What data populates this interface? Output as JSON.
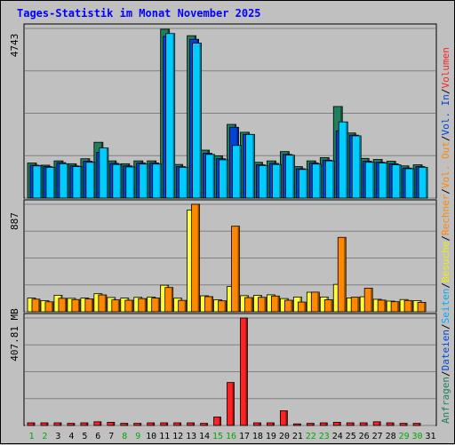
{
  "chart_data": {
    "type": "bar",
    "title": "Tages-Statistik im Monat November 2025",
    "days": [
      "1",
      "2",
      "3",
      "4",
      "5",
      "6",
      "7",
      "8",
      "9",
      "10",
      "11",
      "12",
      "13",
      "14",
      "15",
      "16",
      "17",
      "18",
      "19",
      "20",
      "21",
      "22",
      "23",
      "24",
      "25",
      "26",
      "27",
      "28",
      "29",
      "30",
      "31"
    ],
    "weekend_days": [
      "1",
      "2",
      "8",
      "9",
      "15",
      "16",
      "22",
      "23",
      "29",
      "30"
    ],
    "panels": [
      {
        "id": "hits",
        "ymax_label": "4743",
        "ylim": [
          0,
          4743
        ],
        "series": [
          {
            "name": "Anfragen",
            "color": "#1f7f5f",
            "values": [
              980,
              920,
              1040,
              960,
              1100,
              1560,
              1040,
              960,
              1040,
              1040,
              4720,
              940,
              4540,
              1340,
              1180,
              2060,
              1840,
              1000,
              1040,
              1300,
              880,
              1040,
              1130,
              2560,
              1820,
              1110,
              1080,
              1030,
              900,
              930,
              0
            ]
          },
          {
            "name": "Dateien",
            "color": "#0044dd",
            "values": [
              920,
              880,
              990,
              900,
              1030,
              1280,
              970,
              900,
              980,
              980,
              4520,
              880,
              4440,
              1250,
              1100,
              1980,
              1780,
              930,
              970,
              1220,
              820,
              980,
              1060,
              1880,
              1760,
              1030,
              1000,
              960,
              840,
              880,
              0
            ]
          },
          {
            "name": "Seiten",
            "color": "#00ccff",
            "values": [
              900,
              860,
              960,
              880,
              1000,
              1400,
              940,
              870,
              950,
              950,
              4600,
              860,
              4330,
              1220,
              1070,
              1470,
              1780,
              910,
              940,
              1200,
              800,
              950,
              1040,
              2130,
              1740,
              1000,
              980,
              930,
              820,
              860,
              0
            ]
          }
        ]
      },
      {
        "id": "visits",
        "ymax_label": "887",
        "ylim": [
          0,
          887
        ],
        "series": [
          {
            "name": "Besuche",
            "color": "#ffff33",
            "values": [
              113,
              91,
              136,
              111,
              113,
              149,
              118,
              113,
              119,
              122,
              219,
              112,
              840,
              132,
              99,
              209,
              133,
              135,
              140,
              109,
              122,
              161,
              122,
              226,
              114,
              124,
              103,
              88,
              101,
              91,
              0
            ]
          },
          {
            "name": "Rechner",
            "color": "#ff8800",
            "values": [
              104,
              82,
              111,
              101,
              106,
              139,
              98,
              95,
              109,
              113,
              200,
              94,
              887,
              125,
              90,
              706,
              117,
              119,
              130,
              95,
              80,
              162,
              99,
              614,
              120,
              194,
              96,
              83,
              93,
              78,
              0
            ]
          }
        ]
      },
      {
        "id": "volume",
        "ymax_label": "407.81 MB",
        "ylim": [
          0,
          407.81
        ],
        "series": [
          {
            "name": "Volumen",
            "color": "#ff2222",
            "values": [
              10,
              10,
              10,
              8,
              10,
              14,
              12,
              8,
              8,
              10,
              10,
              10,
              10,
              8,
              32,
              163,
              407.81,
              10,
              10,
              56,
              6,
              8,
              10,
              12,
              10,
              10,
              14,
              10,
              8,
              8,
              0
            ]
          }
        ]
      }
    ],
    "legend_right": [
      {
        "label": "Anfragen",
        "color": "#1f7f5f"
      },
      {
        "label": "Dateien",
        "color": "#0044dd"
      },
      {
        "label": "Seiten",
        "color": "#00aaff"
      },
      {
        "label": "Besuche",
        "color": "#eeee00"
      },
      {
        "label": "Rechner",
        "color": "#ff8800"
      },
      {
        "label": "Vol. Out",
        "color": "#ff8800"
      },
      {
        "label": "Vol. In",
        "color": "#0044dd"
      },
      {
        "label": "Volumen",
        "color": "#ff2222"
      }
    ],
    "legend_separator": "/"
  }
}
